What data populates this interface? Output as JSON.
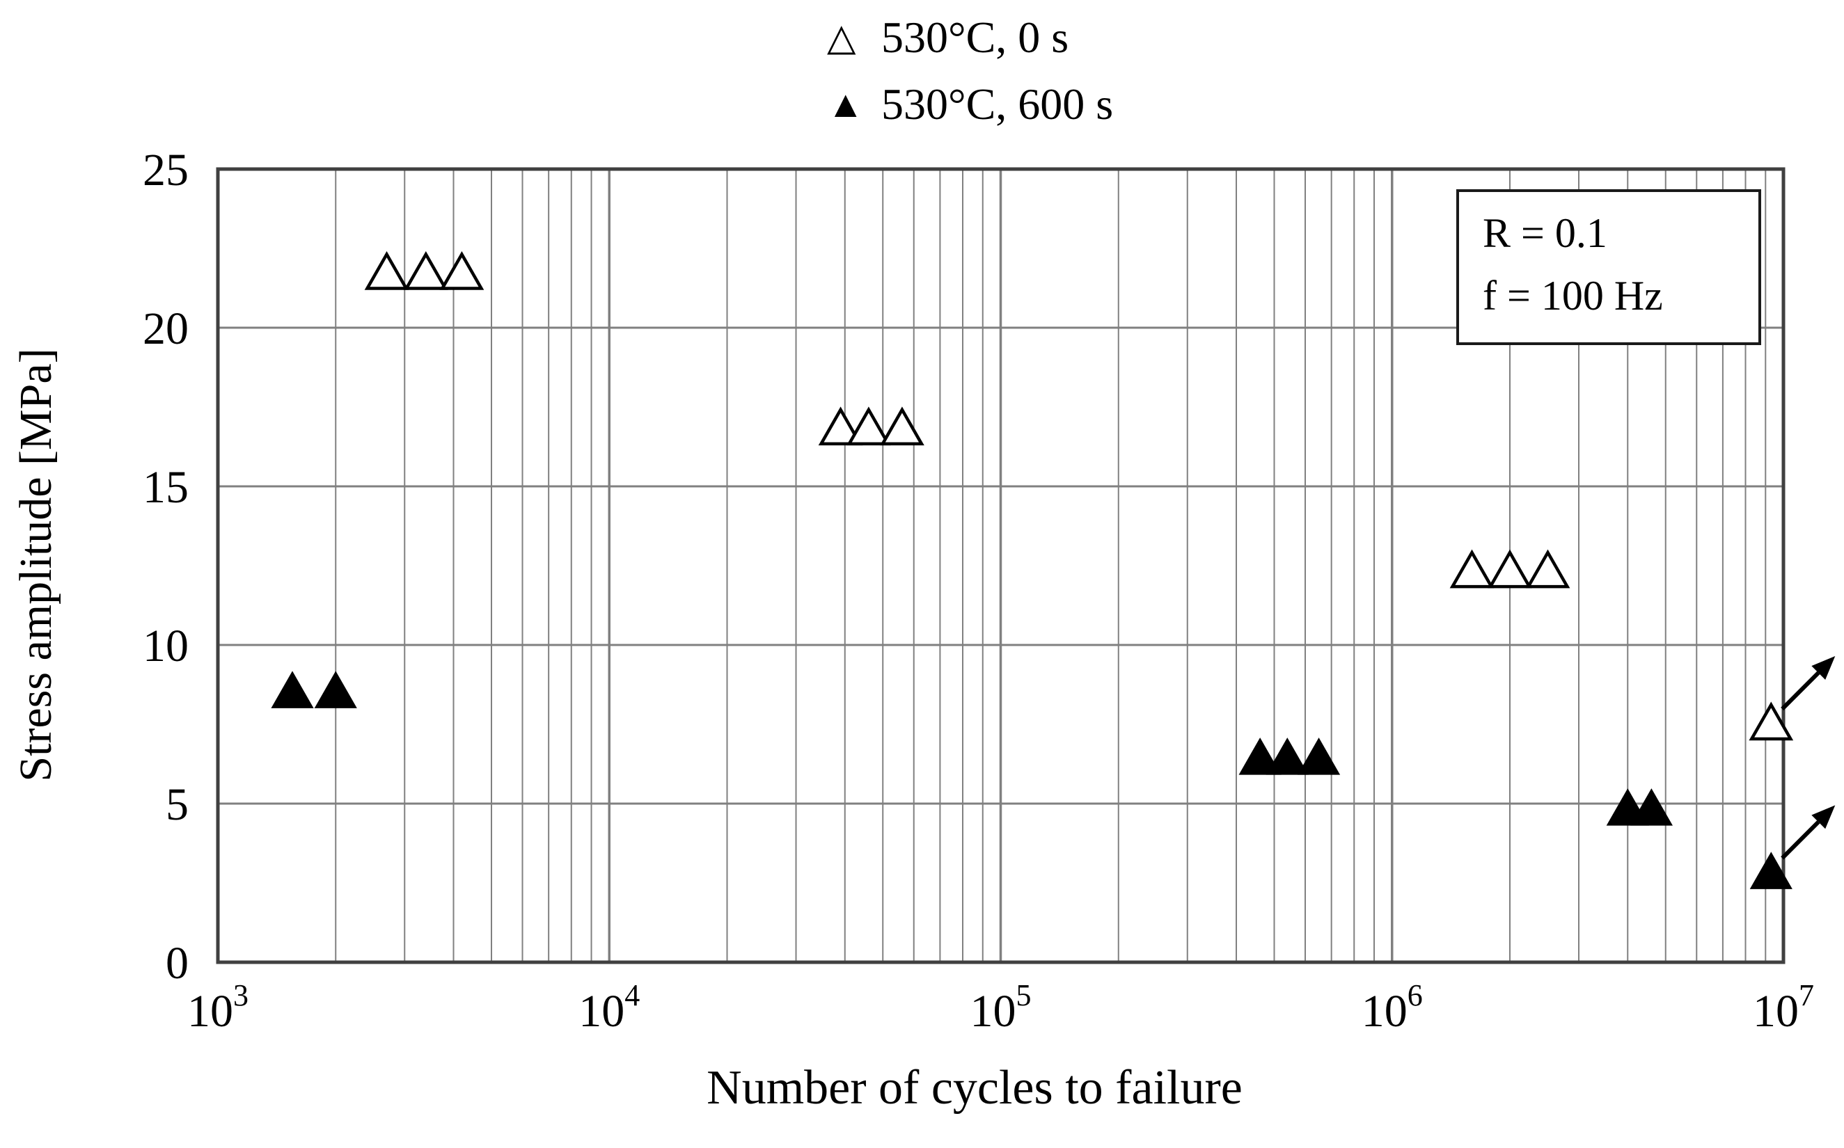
{
  "chart_data": {
    "type": "scatter",
    "xlabel": "Number of cycles to failure",
    "ylabel": "Stress amplitude [MPa]",
    "x_scale": "log10",
    "xlim": [
      1000,
      10000000
    ],
    "ylim": [
      0,
      25
    ],
    "x_tick_exponents": [
      3,
      4,
      5,
      6,
      7
    ],
    "y_ticks": [
      0,
      5,
      10,
      15,
      20,
      25
    ],
    "grid": "horizontal major lines + vertical log decade and minor lines",
    "legend_position": "top-center",
    "colors": {
      "grid": "#808080",
      "frame": "#404040",
      "marker": "#000000"
    },
    "legend": [
      {
        "glyph": "△",
        "marker": "open-triangle",
        "label": "530°C, 0 s"
      },
      {
        "glyph": "▲",
        "marker": "filled-triangle",
        "label": "530°C, 600 s"
      }
    ],
    "annotation": [
      "R = 0.1",
      "f = 100 Hz"
    ],
    "series": [
      {
        "name": "530°C, 0 s",
        "marker": "open-triangle",
        "points": [
          [
            2700,
            21.7
          ],
          [
            3400,
            21.7
          ],
          [
            4200,
            21.7
          ],
          [
            39000,
            16.8
          ],
          [
            46000,
            16.8
          ],
          [
            56000,
            16.8
          ],
          [
            1600000,
            12.3
          ],
          [
            2000000,
            12.3
          ],
          [
            2500000,
            12.3
          ],
          [
            9300000,
            7.5
          ]
        ],
        "runout_arrows": [
          [
            9300000,
            7.5
          ]
        ]
      },
      {
        "name": "530°C, 600 s",
        "marker": "filled-triangle",
        "points": [
          [
            1550,
            8.5
          ],
          [
            2000,
            8.5
          ],
          [
            460000,
            6.4
          ],
          [
            540000,
            6.4
          ],
          [
            650000,
            6.4
          ],
          [
            4000000,
            4.8
          ],
          [
            4600000,
            4.8
          ],
          [
            9300000,
            2.8
          ]
        ],
        "runout_arrows": [
          [
            9300000,
            2.8
          ]
        ]
      }
    ]
  }
}
